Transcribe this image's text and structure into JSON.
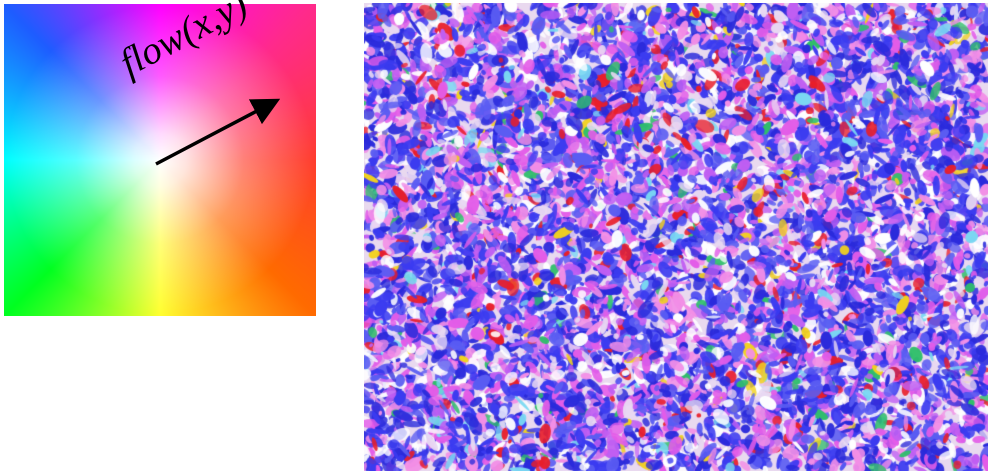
{
  "colorkey": {
    "label": "flow(x,y)"
  },
  "flow_field": {
    "palette": [
      "#2a2adb",
      "#3b3bf0",
      "#5a5cf2",
      "#c05ef2",
      "#e35ce8",
      "#f28ee6",
      "#ffffff",
      "#e8d8f2",
      "#e81e2a",
      "#2fbf6a",
      "#f2d21e",
      "#7ad8f2"
    ],
    "background": "#e9d9ef"
  }
}
